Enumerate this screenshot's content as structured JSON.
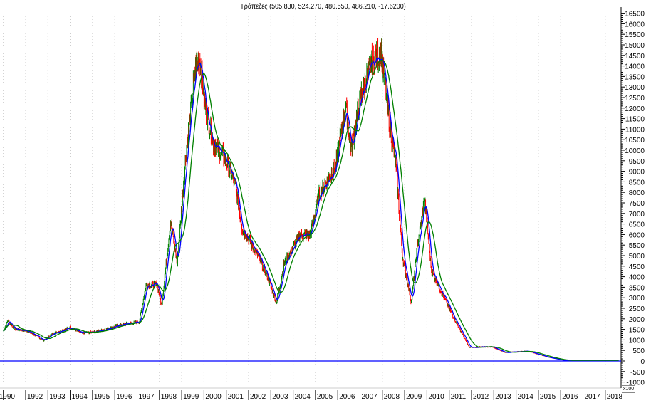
{
  "chart_data": {
    "type": "line",
    "title": "Τράπεζες (505.830, 524.270, 480.550, 486.210, -17.6200)",
    "y_unit_label": "x100",
    "ylim": [
      -1000,
      16500
    ],
    "y_ticks": [
      -1000,
      -500,
      0,
      500,
      1000,
      1500,
      2000,
      2500,
      3000,
      3500,
      4000,
      4500,
      5000,
      5500,
      6000,
      6500,
      7000,
      7500,
      8000,
      8500,
      9000,
      9500,
      10000,
      10500,
      11000,
      11500,
      12000,
      12500,
      13000,
      13500,
      14000,
      14500,
      15000,
      15500,
      16000,
      16500
    ],
    "x_ticks": [
      "1990",
      "1992",
      "1993",
      "1994",
      "1995",
      "1996",
      "1997",
      "1998",
      "1999",
      "2000",
      "2001",
      "2002",
      "2003",
      "2004",
      "2005",
      "2006",
      "2007",
      "2008",
      "2009",
      "2010",
      "2011",
      "2012",
      "2013",
      "2014",
      "2015",
      "2016",
      "2017",
      "2018"
    ],
    "grid": "vertical dotted",
    "colors": {
      "price_up": "#008000",
      "price_down": "#ff0000",
      "short_ma": "#0000ff",
      "long_ma": "#008000",
      "zero_line": "#0000ff"
    },
    "series": [
      {
        "x": [
          1991.0,
          1991.2,
          1991.5,
          1992.1,
          1992.8,
          1993.25,
          1994.0,
          1994.5,
          1995.3,
          1996.3,
          1997.1,
          1997.4,
          1997.9,
          1998.1,
          1998.5,
          1998.8,
          1999.15,
          1999.6,
          1999.8,
          2000.05,
          2000.4,
          2000.9,
          2001.4,
          2001.7,
          2002.35,
          2002.8,
          2003.25,
          2003.6,
          2004.3,
          2004.75,
          2005.2,
          2005.9,
          2006.35,
          2006.6,
          2007.0,
          2007.5,
          2007.95,
          2008.3,
          2008.6,
          2008.9,
          2009.3,
          2009.55,
          2009.9,
          2010.2,
          2010.65,
          2011.1,
          2011.9,
          2012.9,
          2013.5,
          2014.5,
          2015.45,
          2016.1,
          2018.6
        ],
        "y": [
          1420,
          1930,
          1520,
          1420,
          980,
          1320,
          1590,
          1320,
          1420,
          1720,
          1860,
          3620,
          3620,
          2600,
          6660,
          4630,
          9360,
          13760,
          14430,
          12070,
          10380,
          9700,
          8350,
          6320,
          5140,
          4120,
          2770,
          4630,
          5980,
          5980,
          8010,
          9190,
          12070,
          10040,
          12400,
          14100,
          14600,
          11390,
          9360,
          4970,
          2770,
          5310,
          7670,
          4290,
          3280,
          2260,
          640,
          680,
          400,
          470,
          170,
          30,
          30
        ]
      }
    ]
  }
}
